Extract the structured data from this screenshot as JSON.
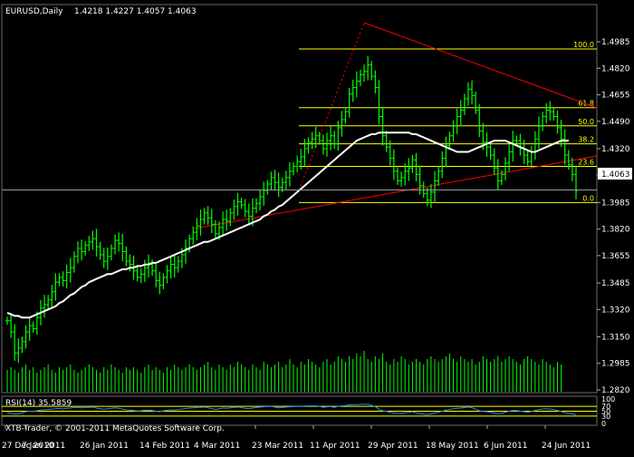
{
  "window": {
    "symbol_label": "EURUSD,Daily",
    "ohlc_label": "1.4218 1.4227 1.4057 1.4063",
    "copyright": "XTB-Trader, © 2001-2011 MetaQuotes Software Corp."
  },
  "colors": {
    "background": "#000000",
    "candle": "#00ff00",
    "moving_average": "#ffffff",
    "trend_line": "#ff0000",
    "fibonacci": "#ffff00",
    "rsi_line": "#1e90ff",
    "grid": "#5a5a5a",
    "text": "#ffffff"
  },
  "chart_data": [
    {
      "type": "line",
      "title": "EURUSD,Daily",
      "ylim": [
        1.282,
        1.4985
      ],
      "y_ticks": [
        "1.4985",
        "1.4820",
        "1.4655",
        "1.4490",
        "1.4320",
        "1.4155",
        "1.3985",
        "1.3820",
        "1.3655",
        "1.3485",
        "1.3320",
        "1.3150",
        "1.2985",
        "1.2820"
      ],
      "x_ticks": [
        "27 Dec 2010",
        "7 Jan 2011",
        "26 Jan 2011",
        "14 Feb 2011",
        "4 Mar 2011",
        "23 Mar 2011",
        "11 Apr 2011",
        "29 Apr 2011",
        "18 May 2011",
        "6 Jun 2011",
        "24 Jun 2011"
      ],
      "current_price": "1.4063",
      "fibonacci_levels": [
        {
          "label": "100.0",
          "price": 1.494
        },
        {
          "label": "61.8",
          "price": 1.4575
        },
        {
          "label": "50.0",
          "price": 1.4462
        },
        {
          "label": "38.2",
          "price": 1.435
        },
        {
          "label": "23.6",
          "price": 1.421
        },
        {
          "label": "0.0",
          "price": 1.3985
        }
      ],
      "series": [
        {
          "kind": "price",
          "values": [
            1.325,
            1.318,
            1.305,
            1.308,
            1.312,
            1.318,
            1.322,
            1.32,
            1.327,
            1.333,
            1.335,
            1.338,
            1.343,
            1.349,
            1.352,
            1.35,
            1.355,
            1.358,
            1.365,
            1.37,
            1.368,
            1.372,
            1.374,
            1.376,
            1.371,
            1.366,
            1.362,
            1.365,
            1.37,
            1.375,
            1.373,
            1.368,
            1.362,
            1.36,
            1.356,
            1.352,
            1.354,
            1.358,
            1.36,
            1.356,
            1.35,
            1.347,
            1.352,
            1.356,
            1.36,
            1.358,
            1.362,
            1.366,
            1.37,
            1.376,
            1.38,
            1.384,
            1.388,
            1.392,
            1.389,
            1.385,
            1.379,
            1.383,
            1.388,
            1.387,
            1.392,
            1.396,
            1.399,
            1.397,
            1.393,
            1.39,
            1.395,
            1.398,
            1.402,
            1.406,
            1.41,
            1.414,
            1.411,
            1.408,
            1.411,
            1.414,
            1.418,
            1.421,
            1.424,
            1.427,
            1.432,
            1.436,
            1.438,
            1.44,
            1.437,
            1.432,
            1.437,
            1.44,
            1.435,
            1.445,
            1.45,
            1.455,
            1.466,
            1.47,
            1.474,
            1.478,
            1.48,
            1.484,
            1.477,
            1.47,
            1.452,
            1.44,
            1.433,
            1.426,
            1.418,
            1.412,
            1.414,
            1.418,
            1.42,
            1.425,
            1.416,
            1.409,
            1.404,
            1.4,
            1.405,
            1.412,
            1.418,
            1.426,
            1.434,
            1.44,
            1.446,
            1.452,
            1.456,
            1.463,
            1.469,
            1.465,
            1.456,
            1.443,
            1.436,
            1.433,
            1.428,
            1.42,
            1.412,
            1.416,
            1.423,
            1.43,
            1.437,
            1.437,
            1.432,
            1.428,
            1.424,
            1.43,
            1.438,
            1.446,
            1.452,
            1.456,
            1.455,
            1.452,
            1.445,
            1.438,
            1.428,
            1.422,
            1.416,
            1.406
          ]
        },
        {
          "kind": "moving_average",
          "values": [
            1.33,
            1.329,
            1.328,
            1.328,
            1.327,
            1.327,
            1.327,
            1.328,
            1.329,
            1.33,
            1.331,
            1.332,
            1.333,
            1.334,
            1.336,
            1.337,
            1.339,
            1.341,
            1.342,
            1.344,
            1.346,
            1.347,
            1.349,
            1.35,
            1.351,
            1.352,
            1.353,
            1.354,
            1.354,
            1.355,
            1.356,
            1.357,
            1.357,
            1.358,
            1.358,
            1.359,
            1.359,
            1.36,
            1.36,
            1.361,
            1.361,
            1.362,
            1.363,
            1.364,
            1.365,
            1.366,
            1.367,
            1.368,
            1.369,
            1.37,
            1.371,
            1.372,
            1.373,
            1.374,
            1.374,
            1.375,
            1.376,
            1.377,
            1.378,
            1.379,
            1.38,
            1.381,
            1.382,
            1.383,
            1.384,
            1.385,
            1.386,
            1.387,
            1.388,
            1.39,
            1.391,
            1.393,
            1.394,
            1.396,
            1.397,
            1.399,
            1.401,
            1.403,
            1.405,
            1.407,
            1.409,
            1.411,
            1.413,
            1.415,
            1.417,
            1.419,
            1.421,
            1.423,
            1.425,
            1.427,
            1.429,
            1.431,
            1.433,
            1.435,
            1.437,
            1.438,
            1.439,
            1.44,
            1.441,
            1.441,
            1.442,
            1.442,
            1.442,
            1.442,
            1.442,
            1.442,
            1.442,
            1.442,
            1.442,
            1.441,
            1.441,
            1.44,
            1.439,
            1.438,
            1.437,
            1.436,
            1.435,
            1.434,
            1.433,
            1.432,
            1.431,
            1.43,
            1.43,
            1.43,
            1.43,
            1.431,
            1.432,
            1.433,
            1.434,
            1.435,
            1.436,
            1.437,
            1.437,
            1.437,
            1.437,
            1.436,
            1.435,
            1.434,
            1.433,
            1.432,
            1.431,
            1.43,
            1.43,
            1.431,
            1.432,
            1.433,
            1.434,
            1.435,
            1.436,
            1.437,
            1.437,
            1.437
          ]
        }
      ],
      "volume": [
        8,
        9,
        8,
        7,
        9,
        10,
        8,
        9,
        7,
        8,
        9,
        10,
        8,
        7,
        9,
        8,
        9,
        10,
        8,
        7,
        8,
        9,
        10,
        9,
        8,
        7,
        9,
        8,
        10,
        9,
        8,
        7,
        9,
        8,
        9,
        8,
        7,
        9,
        10,
        8,
        9,
        8,
        7,
        9,
        8,
        10,
        9,
        8,
        9,
        10,
        9,
        8,
        9,
        10,
        11,
        9,
        8,
        10,
        9,
        8,
        10,
        9,
        11,
        10,
        9,
        8,
        10,
        9,
        8,
        11,
        10,
        9,
        10,
        11,
        9,
        10,
        12,
        10,
        9,
        11,
        10,
        12,
        11,
        10,
        9,
        11,
        12,
        10,
        11,
        13,
        12,
        11,
        13,
        12,
        14,
        13,
        15,
        12,
        11,
        13,
        12,
        14,
        11,
        10,
        12,
        11,
        13,
        12,
        10,
        11,
        12,
        11,
        10,
        12,
        13,
        12,
        11,
        12,
        13,
        14,
        12,
        11,
        13,
        12,
        11,
        12,
        10,
        11,
        13,
        12,
        11,
        12,
        13,
        11,
        12,
        13,
        12,
        11,
        10,
        12,
        13,
        12,
        11,
        10,
        12,
        11,
        10,
        9,
        11,
        10
      ]
    },
    {
      "type": "line",
      "title": "RSI(14) 35.5859",
      "ylim": [
        0,
        100
      ],
      "y_ticks": [
        "100",
        "70",
        "50",
        "30",
        "0"
      ],
      "series": [
        {
          "kind": "rsi",
          "values": [
            45,
            42,
            38,
            40,
            44,
            48,
            50,
            49,
            52,
            55,
            56,
            57,
            58,
            60,
            61,
            59,
            62,
            63,
            65,
            66,
            64,
            65,
            66,
            67,
            63,
            60,
            58,
            60,
            62,
            64,
            62,
            59,
            56,
            55,
            53,
            51,
            52,
            54,
            55,
            53,
            50,
            48,
            52,
            54,
            56,
            55,
            57,
            59,
            61,
            63,
            64,
            65,
            66,
            67,
            64,
            61,
            57,
            60,
            63,
            62,
            64,
            66,
            67,
            65,
            62,
            60,
            63,
            65,
            67,
            68,
            69,
            70,
            67,
            64,
            65,
            67,
            68,
            69,
            70,
            70,
            71,
            72,
            72,
            72,
            70,
            66,
            68,
            69,
            66,
            70,
            72,
            73,
            76,
            77,
            77,
            78,
            78,
            79,
            74,
            68,
            58,
            52,
            49,
            46,
            43,
            41,
            42,
            44,
            45,
            48,
            43,
            40,
            38,
            36,
            39,
            43,
            46,
            50,
            54,
            57,
            60,
            62,
            63,
            65,
            67,
            64,
            59,
            52,
            49,
            48,
            46,
            43,
            40,
            42,
            46,
            50,
            53,
            53,
            50,
            48,
            46,
            49,
            53,
            57,
            59,
            60,
            59,
            57,
            53,
            49,
            44,
            42,
            39,
            36
          ]
        }
      ]
    }
  ]
}
